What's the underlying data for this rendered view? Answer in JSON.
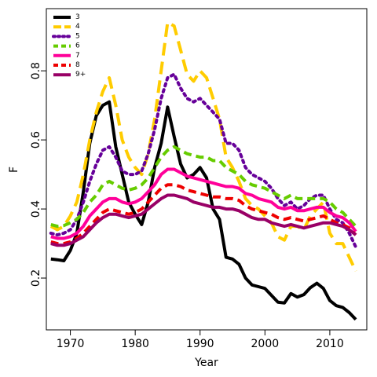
{
  "chart_data": {
    "type": "line",
    "title": "",
    "xlabel": "Year",
    "ylabel": "F",
    "xlim": [
      1966.3,
      2015.7
    ],
    "ylim": [
      0.05,
      0.98
    ],
    "xticks": [
      1970,
      1980,
      1990,
      2000,
      2010
    ],
    "yticks": [
      0.2,
      0.4,
      0.6,
      0.8
    ],
    "grid": false,
    "legend_position": "top-left",
    "series": [
      {
        "name": "3",
        "color": "#000000",
        "dash": "solid",
        "x": [
          1967,
          1968,
          1969,
          1970,
          1971,
          1972,
          1973,
          1974,
          1975,
          1976,
          1977,
          1978,
          1979,
          1980,
          1981,
          1982,
          1983,
          1984,
          1985,
          1986,
          1987,
          1988,
          1989,
          1990,
          1991,
          1992,
          1993,
          1994,
          1995,
          1996,
          1997,
          1998,
          1999,
          2000,
          2001,
          2002,
          2003,
          2004,
          2005,
          2006,
          2007,
          2008,
          2009,
          2010,
          2011,
          2012,
          2013,
          2014
        ],
        "y": [
          0.255,
          0.253,
          0.25,
          0.28,
          0.33,
          0.45,
          0.59,
          0.67,
          0.7,
          0.71,
          0.58,
          0.5,
          0.42,
          0.385,
          0.355,
          0.42,
          0.52,
          0.59,
          0.695,
          0.61,
          0.53,
          0.49,
          0.5,
          0.52,
          0.49,
          0.4,
          0.37,
          0.26,
          0.255,
          0.24,
          0.2,
          0.18,
          0.175,
          0.17,
          0.15,
          0.13,
          0.128,
          0.155,
          0.145,
          0.152,
          0.172,
          0.185,
          0.17,
          0.135,
          0.12,
          0.115,
          0.1,
          0.08
        ]
      },
      {
        "name": "4",
        "color": "#ffcc00",
        "dash": "long",
        "x": [
          1967,
          1968,
          1969,
          1970,
          1971,
          1972,
          1973,
          1974,
          1975,
          1976,
          1977,
          1978,
          1979,
          1980,
          1981,
          1982,
          1983,
          1984,
          1985,
          1986,
          1987,
          1988,
          1989,
          1990,
          1991,
          1992,
          1993,
          1994,
          1995,
          1996,
          1997,
          1998,
          1999,
          2000,
          2001,
          2002,
          2003,
          2004,
          2005,
          2006,
          2007,
          2008,
          2009,
          2010,
          2011,
          2012,
          2013,
          2014
        ],
        "y": [
          0.35,
          0.34,
          0.35,
          0.38,
          0.42,
          0.5,
          0.6,
          0.68,
          0.74,
          0.78,
          0.7,
          0.6,
          0.55,
          0.52,
          0.5,
          0.56,
          0.66,
          0.8,
          0.94,
          0.93,
          0.86,
          0.79,
          0.77,
          0.8,
          0.78,
          0.72,
          0.66,
          0.55,
          0.52,
          0.48,
          0.43,
          0.41,
          0.4,
          0.38,
          0.36,
          0.32,
          0.31,
          0.35,
          0.35,
          0.34,
          0.38,
          0.4,
          0.42,
          0.33,
          0.3,
          0.3,
          0.26,
          0.22
        ]
      },
      {
        "name": "5",
        "color": "#660099",
        "dash": "dotted",
        "x": [
          1967,
          1968,
          1969,
          1970,
          1971,
          1972,
          1973,
          1974,
          1975,
          1976,
          1977,
          1978,
          1979,
          1980,
          1981,
          1982,
          1983,
          1984,
          1985,
          1986,
          1987,
          1988,
          1989,
          1990,
          1991,
          1992,
          1993,
          1994,
          1995,
          1996,
          1997,
          1998,
          1999,
          2000,
          2001,
          2002,
          2003,
          2004,
          2005,
          2006,
          2007,
          2008,
          2009,
          2010,
          2011,
          2012,
          2013,
          2014
        ],
        "y": [
          0.33,
          0.325,
          0.33,
          0.34,
          0.37,
          0.42,
          0.48,
          0.53,
          0.57,
          0.58,
          0.55,
          0.51,
          0.5,
          0.5,
          0.51,
          0.56,
          0.63,
          0.72,
          0.78,
          0.79,
          0.75,
          0.72,
          0.71,
          0.72,
          0.7,
          0.68,
          0.66,
          0.59,
          0.59,
          0.57,
          0.52,
          0.5,
          0.49,
          0.48,
          0.46,
          0.43,
          0.41,
          0.42,
          0.4,
          0.41,
          0.43,
          0.44,
          0.44,
          0.4,
          0.37,
          0.36,
          0.33,
          0.29
        ]
      },
      {
        "name": "6",
        "color": "#66cc00",
        "dash": "dashed",
        "x": [
          1967,
          1968,
          1969,
          1970,
          1971,
          1972,
          1973,
          1974,
          1975,
          1976,
          1977,
          1978,
          1979,
          1980,
          1981,
          1982,
          1983,
          1984,
          1985,
          1986,
          1987,
          1988,
          1989,
          1990,
          1991,
          1992,
          1993,
          1994,
          1995,
          1996,
          1997,
          1998,
          1999,
          2000,
          2001,
          2002,
          2003,
          2004,
          2005,
          2006,
          2007,
          2008,
          2009,
          2010,
          2011,
          2012,
          2013,
          2014
        ],
        "y": [
          0.355,
          0.35,
          0.352,
          0.36,
          0.37,
          0.39,
          0.42,
          0.44,
          0.47,
          0.48,
          0.47,
          0.46,
          0.455,
          0.46,
          0.47,
          0.49,
          0.52,
          0.55,
          0.57,
          0.58,
          0.57,
          0.56,
          0.555,
          0.55,
          0.55,
          0.54,
          0.54,
          0.52,
          0.51,
          0.5,
          0.48,
          0.47,
          0.465,
          0.46,
          0.45,
          0.44,
          0.43,
          0.44,
          0.43,
          0.43,
          0.43,
          0.43,
          0.43,
          0.42,
          0.4,
          0.39,
          0.37,
          0.35
        ]
      },
      {
        "name": "7",
        "color": "#ff0099",
        "dash": "solid",
        "x": [
          1967,
          1968,
          1969,
          1970,
          1971,
          1972,
          1973,
          1974,
          1975,
          1976,
          1977,
          1978,
          1979,
          1980,
          1981,
          1982,
          1983,
          1984,
          1985,
          1986,
          1987,
          1988,
          1989,
          1990,
          1991,
          1992,
          1993,
          1994,
          1995,
          1996,
          1997,
          1998,
          1999,
          2000,
          2001,
          2002,
          2003,
          2004,
          2005,
          2006,
          2007,
          2008,
          2009,
          2010,
          2011,
          2012,
          2013,
          2014
        ],
        "y": [
          0.32,
          0.315,
          0.315,
          0.32,
          0.33,
          0.35,
          0.38,
          0.4,
          0.42,
          0.43,
          0.43,
          0.42,
          0.415,
          0.42,
          0.43,
          0.45,
          0.47,
          0.5,
          0.515,
          0.515,
          0.505,
          0.495,
          0.49,
          0.485,
          0.48,
          0.475,
          0.47,
          0.465,
          0.465,
          0.46,
          0.445,
          0.44,
          0.43,
          0.425,
          0.42,
          0.405,
          0.4,
          0.405,
          0.395,
          0.395,
          0.4,
          0.405,
          0.405,
          0.39,
          0.38,
          0.375,
          0.36,
          0.335
        ]
      },
      {
        "name": "8",
        "color": "#ee0000",
        "dash": "dashed",
        "x": [
          1967,
          1968,
          1969,
          1970,
          1971,
          1972,
          1973,
          1974,
          1975,
          1976,
          1977,
          1978,
          1979,
          1980,
          1981,
          1982,
          1983,
          1984,
          1985,
          1986,
          1987,
          1988,
          1989,
          1990,
          1991,
          1992,
          1993,
          1994,
          1995,
          1996,
          1997,
          1998,
          1999,
          2000,
          2001,
          2002,
          2003,
          2004,
          2005,
          2006,
          2007,
          2008,
          2009,
          2010,
          2011,
          2012,
          2013,
          2014
        ],
        "y": [
          0.305,
          0.3,
          0.3,
          0.305,
          0.315,
          0.33,
          0.35,
          0.37,
          0.39,
          0.4,
          0.395,
          0.39,
          0.385,
          0.39,
          0.4,
          0.42,
          0.44,
          0.46,
          0.47,
          0.47,
          0.465,
          0.455,
          0.45,
          0.445,
          0.44,
          0.435,
          0.435,
          0.43,
          0.43,
          0.425,
          0.41,
          0.4,
          0.395,
          0.39,
          0.385,
          0.375,
          0.37,
          0.375,
          0.37,
          0.365,
          0.37,
          0.375,
          0.38,
          0.37,
          0.36,
          0.355,
          0.345,
          0.325
        ]
      },
      {
        "name": "9+",
        "color": "#990066",
        "dash": "solid",
        "x": [
          1967,
          1968,
          1969,
          1970,
          1971,
          1972,
          1973,
          1974,
          1975,
          1976,
          1977,
          1978,
          1979,
          1980,
          1981,
          1982,
          1983,
          1984,
          1985,
          1986,
          1987,
          1988,
          1989,
          1990,
          1991,
          1992,
          1993,
          1994,
          1995,
          1996,
          1997,
          1998,
          1999,
          2000,
          2001,
          2002,
          2003,
          2004,
          2005,
          2006,
          2007,
          2008,
          2009,
          2010,
          2011,
          2012,
          2013,
          2014
        ],
        "y": [
          0.3,
          0.295,
          0.295,
          0.3,
          0.31,
          0.32,
          0.34,
          0.36,
          0.375,
          0.385,
          0.385,
          0.38,
          0.375,
          0.38,
          0.385,
          0.4,
          0.415,
          0.43,
          0.44,
          0.44,
          0.435,
          0.43,
          0.42,
          0.415,
          0.41,
          0.405,
          0.405,
          0.4,
          0.4,
          0.395,
          0.385,
          0.375,
          0.37,
          0.37,
          0.36,
          0.355,
          0.35,
          0.355,
          0.35,
          0.345,
          0.35,
          0.355,
          0.36,
          0.36,
          0.355,
          0.35,
          0.34,
          0.325
        ]
      }
    ]
  }
}
